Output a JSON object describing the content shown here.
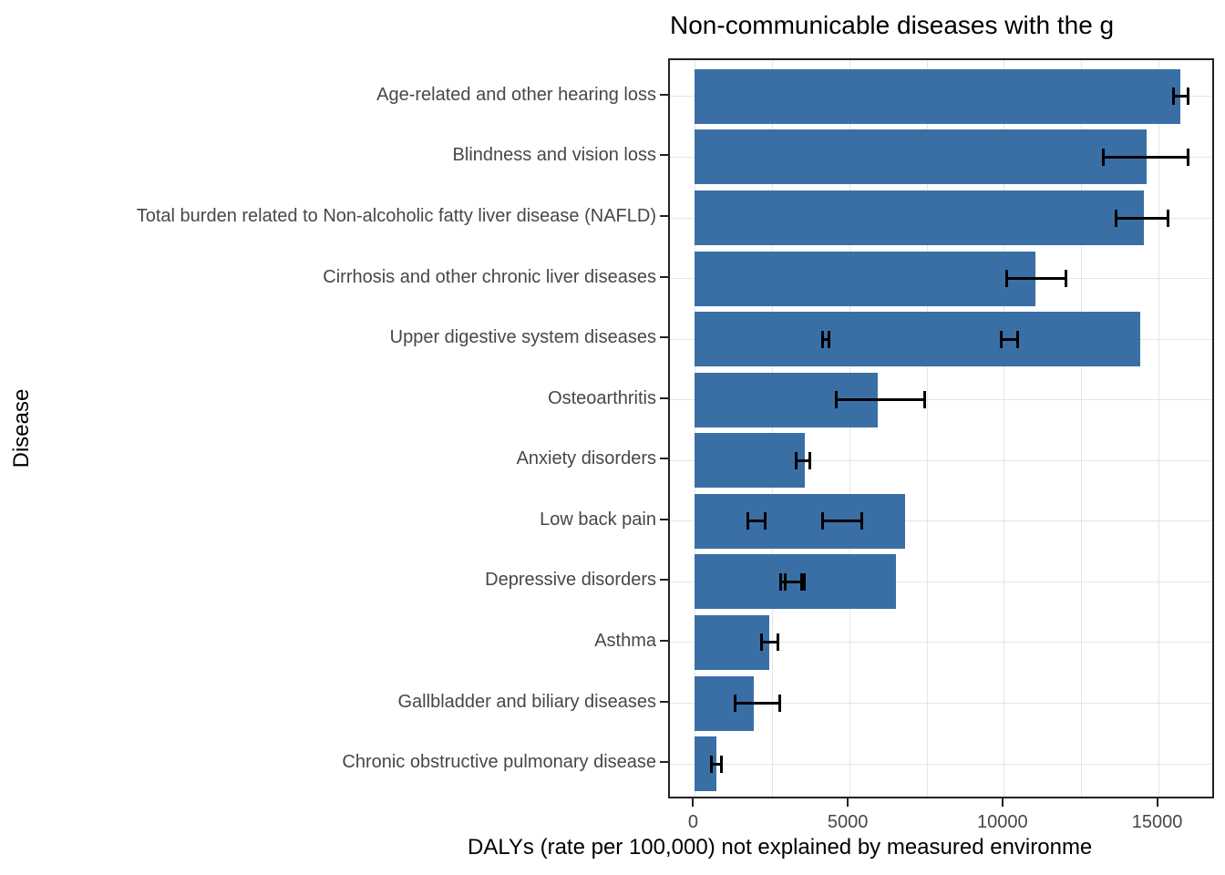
{
  "chart_data": {
    "type": "bar",
    "orientation": "horizontal",
    "title": "Non-communicable diseases with the g",
    "xlabel": "DALYs (rate per 100,000) not explained by measured environme",
    "ylabel": "Disease",
    "categories": [
      "Age-related and other hearing loss",
      "Blindness and vision loss",
      "Total burden related to Non-alcoholic fatty liver disease (NAFLD)",
      "Cirrhosis and other chronic liver diseases",
      "Upper digestive system diseases",
      "Osteoarthritis",
      "Anxiety disorders",
      "Low back pain",
      "Depressive disorders",
      "Asthma",
      "Gallbladder and biliary diseases",
      "Chronic obstructive pulmonary disease"
    ],
    "values": [
      15700,
      14600,
      14500,
      11000,
      14400,
      5900,
      3550,
      6800,
      6500,
      2400,
      1900,
      700
    ],
    "error_bars": [
      [
        [
          15450,
          15950
        ]
      ],
      [
        [
          13200,
          15950
        ]
      ],
      [
        [
          13600,
          15300
        ]
      ],
      [
        [
          10050,
          12000
        ]
      ],
      [
        [
          4100,
          4360
        ],
        [
          9900,
          10450
        ]
      ],
      [
        [
          4550,
          7450
        ]
      ],
      [
        [
          3250,
          3730
        ]
      ],
      [
        [
          1700,
          2290
        ],
        [
          4100,
          5400
        ]
      ],
      [
        [
          2750,
          3450
        ],
        [
          2900,
          3550
        ]
      ],
      [
        [
          2150,
          2690
        ]
      ],
      [
        [
          1290,
          2770
        ]
      ],
      [
        [
          520,
          860
        ]
      ]
    ],
    "x_ticks": [
      0,
      5000,
      10000,
      15000
    ],
    "x_tick_labels": [
      "0",
      "5000",
      "10000",
      "15000"
    ],
    "x_major_gridlines": [
      0,
      5000,
      10000,
      15000
    ],
    "x_minor_gridlines": [
      2500,
      7500,
      12500
    ],
    "x_domain": [
      -810,
      16841
    ],
    "bar_color": "#3a6fa6",
    "error_bar_color": "#000000",
    "grid": true,
    "legend": false
  }
}
